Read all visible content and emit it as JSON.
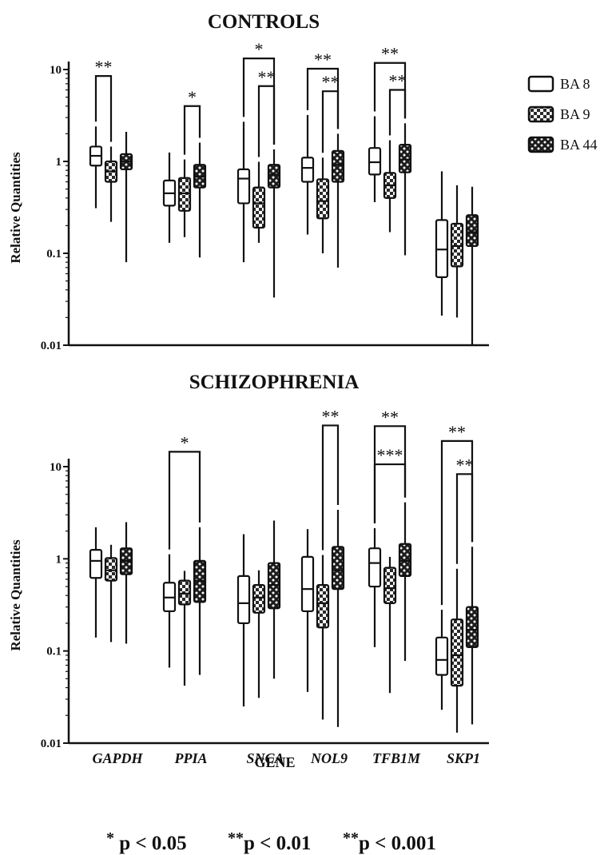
{
  "chart_data": [
    {
      "type": "box",
      "title": "CONTROLS",
      "ylabel": "Relative Quantities",
      "yscale": "log",
      "ylim": [
        0.01,
        14
      ],
      "yticks": [
        "0.01",
        "0.1",
        "1",
        "10"
      ],
      "ytick_values": [
        0.01,
        0.1,
        1,
        10
      ],
      "categories": [
        "GAPDH",
        "PPIA",
        "SNCA",
        "NOL9",
        "TFB1M",
        "SKP1"
      ],
      "series": [
        {
          "name": "BA 8",
          "pattern": "open",
          "boxes": [
            {
              "min": 0.31,
              "q1": 0.9,
              "median": 1.15,
              "q3": 1.45,
              "max": 2.4
            },
            {
              "min": 0.13,
              "q1": 0.33,
              "median": 0.45,
              "q3": 0.62,
              "max": 1.25
            },
            {
              "min": 0.08,
              "q1": 0.35,
              "median": 0.65,
              "q3": 0.82,
              "max": 2.7
            },
            {
              "min": 0.16,
              "q1": 0.6,
              "median": 0.85,
              "q3": 1.1,
              "max": 3.2
            },
            {
              "min": 0.36,
              "q1": 0.72,
              "median": 0.98,
              "q3": 1.4,
              "max": 3.1
            },
            {
              "min": 0.021,
              "q1": 0.055,
              "median": 0.11,
              "q3": 0.23,
              "max": 0.78
            }
          ]
        },
        {
          "name": "BA 9",
          "pattern": "checker",
          "boxes": [
            {
              "min": 0.22,
              "q1": 0.6,
              "median": 0.78,
              "q3": 1.0,
              "max": 1.45
            },
            {
              "min": 0.15,
              "q1": 0.29,
              "median": 0.45,
              "q3": 0.66,
              "max": 1.05
            },
            {
              "min": 0.13,
              "q1": 0.19,
              "median": 0.35,
              "q3": 0.52,
              "max": 0.99
            },
            {
              "min": 0.1,
              "q1": 0.24,
              "median": 0.37,
              "q3": 0.64,
              "max": 1.1
            },
            {
              "min": 0.17,
              "q1": 0.4,
              "median": 0.55,
              "q3": 0.75,
              "max": 1.7
            },
            {
              "min": 0.02,
              "q1": 0.072,
              "median": 0.12,
              "q3": 0.21,
              "max": 0.55
            }
          ]
        },
        {
          "name": "BA 44",
          "pattern": "dots",
          "boxes": [
            {
              "min": 0.08,
              "q1": 0.82,
              "median": 1.0,
              "q3": 1.2,
              "max": 2.1
            },
            {
              "min": 0.09,
              "q1": 0.52,
              "median": 0.68,
              "q3": 0.92,
              "max": 1.6
            },
            {
              "min": 0.033,
              "q1": 0.52,
              "median": 0.72,
              "q3": 0.92,
              "max": 1.35
            },
            {
              "min": 0.07,
              "q1": 0.6,
              "median": 0.92,
              "q3": 1.3,
              "max": 2.0
            },
            {
              "min": 0.095,
              "q1": 0.76,
              "median": 1.05,
              "q3": 1.52,
              "max": 2.6
            },
            {
              "min": 0.01,
              "q1": 0.12,
              "median": 0.17,
              "q3": 0.26,
              "max": 0.53
            }
          ]
        }
      ],
      "annotations": [
        {
          "category": 0,
          "from": 0,
          "to": 1,
          "y": 8.5,
          "label": "**"
        },
        {
          "category": 1,
          "from": 1,
          "to": 2,
          "y": 4.0,
          "label": "*"
        },
        {
          "category": 2,
          "from": 0,
          "to": 2,
          "y": 13.2,
          "label": "*"
        },
        {
          "category": 2,
          "from": 1,
          "to": 2,
          "y": 6.6,
          "label": "**"
        },
        {
          "category": 3,
          "from": 0,
          "to": 2,
          "y": 10.2,
          "label": "**"
        },
        {
          "category": 3,
          "from": 1,
          "to": 2,
          "y": 5.8,
          "label": "**"
        },
        {
          "category": 4,
          "from": 0,
          "to": 2,
          "y": 11.8,
          "label": "**"
        },
        {
          "category": 4,
          "from": 1,
          "to": 2,
          "y": 6.0,
          "label": "**"
        }
      ]
    },
    {
      "type": "box",
      "title": "SCHIZOPHRENIA",
      "ylabel": "Relative Quantities",
      "yscale": "log",
      "ylim": [
        0.01,
        14
      ],
      "yticks": [
        "0.01",
        "0.1",
        "1",
        "10"
      ],
      "ytick_values": [
        0.01,
        0.1,
        1,
        10
      ],
      "categories": [
        "GAPDH",
        "PPIA",
        "SNCA",
        "NOL9",
        "TFB1M",
        "SKP1"
      ],
      "xlabel": "GENE",
      "series": [
        {
          "name": "BA 8",
          "pattern": "open",
          "boxes": [
            {
              "min": 0.14,
              "q1": 0.62,
              "median": 0.95,
              "q3": 1.25,
              "max": 2.2
            },
            {
              "min": 0.066,
              "q1": 0.27,
              "median": 0.38,
              "q3": 0.55,
              "max": 1.12
            },
            {
              "min": 0.025,
              "q1": 0.2,
              "median": 0.33,
              "q3": 0.65,
              "max": 1.85
            },
            {
              "min": 0.036,
              "q1": 0.27,
              "median": 0.47,
              "q3": 1.05,
              "max": 2.1
            },
            {
              "min": 0.11,
              "q1": 0.5,
              "median": 0.9,
              "q3": 1.3,
              "max": 2.15
            },
            {
              "min": 0.023,
              "q1": 0.055,
              "median": 0.08,
              "q3": 0.14,
              "max": 0.28
            }
          ]
        },
        {
          "name": "BA 9",
          "pattern": "checker",
          "boxes": [
            {
              "min": 0.125,
              "q1": 0.58,
              "median": 0.75,
              "q3": 1.02,
              "max": 1.42
            },
            {
              "min": 0.042,
              "q1": 0.32,
              "median": 0.42,
              "q3": 0.58,
              "max": 0.74
            },
            {
              "min": 0.031,
              "q1": 0.26,
              "median": 0.38,
              "q3": 0.52,
              "max": 0.75
            },
            {
              "min": 0.018,
              "q1": 0.18,
              "median": 0.33,
              "q3": 0.52,
              "max": 1.1
            },
            {
              "min": 0.035,
              "q1": 0.33,
              "median": 0.48,
              "q3": 0.8,
              "max": 1.05
            },
            {
              "min": 0.013,
              "q1": 0.042,
              "median": 0.09,
              "q3": 0.22,
              "max": 0.78
            }
          ]
        },
        {
          "name": "BA 44",
          "pattern": "dots",
          "boxes": [
            {
              "min": 0.12,
              "q1": 0.68,
              "median": 0.95,
              "q3": 1.3,
              "max": 2.5
            },
            {
              "min": 0.055,
              "q1": 0.34,
              "median": 0.58,
              "q3": 0.95,
              "max": 2.2
            },
            {
              "min": 0.05,
              "q1": 0.29,
              "median": 0.52,
              "q3": 0.9,
              "max": 2.6
            },
            {
              "min": 0.015,
              "q1": 0.47,
              "median": 0.75,
              "q3": 1.35,
              "max": 3.4
            },
            {
              "min": 0.078,
              "q1": 0.65,
              "median": 0.95,
              "q3": 1.45,
              "max": 4.1
            },
            {
              "min": 0.016,
              "q1": 0.11,
              "median": 0.17,
              "q3": 0.3,
              "max": 1.35
            }
          ]
        }
      ],
      "annotations": [
        {
          "category": 1,
          "from": 0,
          "to": 2,
          "y": 14.5,
          "label": "*"
        },
        {
          "category": 3,
          "from": 1,
          "to": 2,
          "y": 28.0,
          "label": "**"
        },
        {
          "category": 4,
          "from": 0,
          "to": 2,
          "y": 27.5,
          "label": "**"
        },
        {
          "category": 4,
          "from": 0,
          "to": 2,
          "y": 10.6,
          "label": "***"
        },
        {
          "category": 5,
          "from": 0,
          "to": 2,
          "y": 19.0,
          "label": "**"
        },
        {
          "category": 5,
          "from": 1,
          "to": 2,
          "y": 8.3,
          "label": "**"
        }
      ]
    }
  ],
  "legend": {
    "placement": "top-right",
    "items": [
      {
        "label": "BA 8",
        "pattern": "open"
      },
      {
        "label": "BA 9",
        "pattern": "checker"
      },
      {
        "label": "BA 44",
        "pattern": "dots"
      }
    ]
  },
  "footnote": {
    "parts": [
      {
        "sup": "*",
        "text": " p < 0.05"
      },
      {
        "sup": "**",
        "text": "p < 0.01"
      },
      {
        "sup": "**",
        "text": "p < 0.001"
      }
    ]
  }
}
